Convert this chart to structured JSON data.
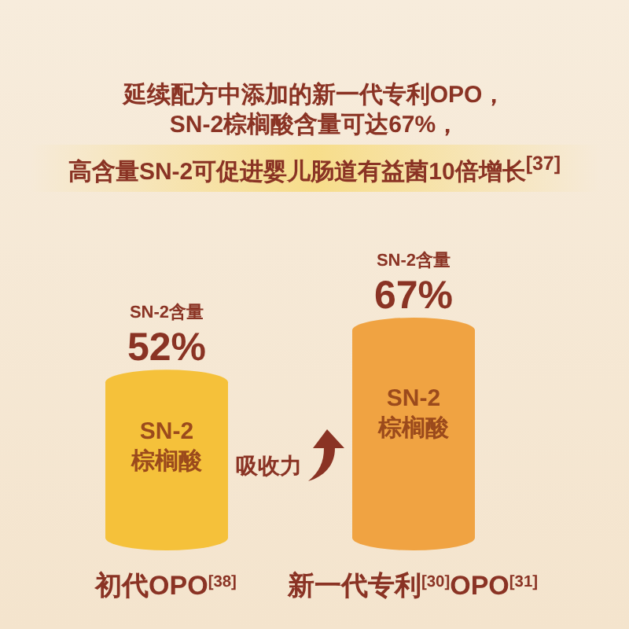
{
  "chart_data": {
    "type": "bar",
    "title": "延续配方中添加的新一代专利OPO，\nSN-2棕榈酸含量可达67%，",
    "subtitle": "高含量SN-2可促进婴儿肠道有益菌10倍增长$^{[37]}$",
    "categories": [
      "初代OPO$^{[38]}$",
      "新一代专利$^{[30]}$OPO$^{[31]}$"
    ],
    "series": [
      {
        "name": "SN-2 棕榈酸",
        "colors": [
          "#f5c13a",
          "#f0a342"
        ],
        "values": [
          52,
          67
        ],
        "value_labels": [
          "52%",
          "67%"
        ]
      }
    ],
    "annotations": [
      "SN-2含量",
      "SN-2含量",
      "吸收力"
    ]
  }
}
